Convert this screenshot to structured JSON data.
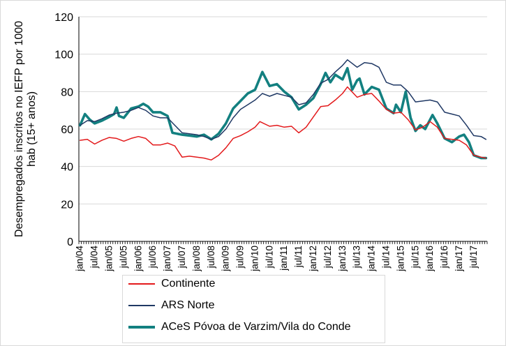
{
  "chart_data": {
    "type": "line",
    "ylabel": "Desempregados inscritos no IEFP por 1000 hab (15+ anos)",
    "ylim": [
      0,
      120
    ],
    "yticks": [
      "0",
      "20",
      "40",
      "60",
      "80",
      "100",
      "120"
    ],
    "xlim": [
      "2004-01",
      "2017-12"
    ],
    "xticks": [
      "jan/04",
      "jul/04",
      "jan/05",
      "jul/05",
      "jan/06",
      "jul/06",
      "jan/07",
      "jul/07",
      "jan/08",
      "jul/08",
      "jan/09",
      "jul/09",
      "jan/10",
      "jul/10",
      "jan/11",
      "jul/11",
      "jan/12",
      "jul/12",
      "jan/13",
      "jul/13",
      "jan/14",
      "jul/14",
      "jan/15",
      "jul/15",
      "jan/16",
      "jul/16",
      "jan/17",
      "jul/17"
    ],
    "grid": "horizontal",
    "legend_position": "bottom",
    "series": [
      {
        "name": "Continente",
        "color": "#e3191b",
        "stroke": "thin",
        "points": [
          [
            "2004-01",
            54
          ],
          [
            "2004-04",
            54.5
          ],
          [
            "2004-07",
            52
          ],
          [
            "2004-10",
            54
          ],
          [
            "2005-01",
            55.5
          ],
          [
            "2005-04",
            55
          ],
          [
            "2005-07",
            53.5
          ],
          [
            "2005-10",
            55
          ],
          [
            "2006-01",
            56
          ],
          [
            "2006-04",
            55
          ],
          [
            "2006-07",
            51.5
          ],
          [
            "2006-10",
            51.5
          ],
          [
            "2007-01",
            52.5
          ],
          [
            "2007-04",
            51
          ],
          [
            "2007-07",
            45
          ],
          [
            "2007-10",
            45.5
          ],
          [
            "2008-01",
            45
          ],
          [
            "2008-04",
            44.5
          ],
          [
            "2008-07",
            43.5
          ],
          [
            "2008-10",
            46
          ],
          [
            "2009-01",
            50
          ],
          [
            "2009-04",
            55
          ],
          [
            "2009-07",
            56.5
          ],
          [
            "2009-10",
            58.5
          ],
          [
            "2010-01",
            61
          ],
          [
            "2010-03",
            64
          ],
          [
            "2010-07",
            61.5
          ],
          [
            "2010-10",
            62
          ],
          [
            "2011-01",
            61
          ],
          [
            "2011-04",
            61.5
          ],
          [
            "2011-07",
            58
          ],
          [
            "2011-10",
            61
          ],
          [
            "2012-01",
            66.5
          ],
          [
            "2012-04",
            72
          ],
          [
            "2012-07",
            72.5
          ],
          [
            "2012-10",
            75.5
          ],
          [
            "2013-01",
            79
          ],
          [
            "2013-03",
            82.5
          ],
          [
            "2013-07",
            77
          ],
          [
            "2013-10",
            78.5
          ],
          [
            "2014-01",
            79
          ],
          [
            "2014-04",
            75
          ],
          [
            "2014-07",
            70.5
          ],
          [
            "2014-10",
            68.5
          ],
          [
            "2015-01",
            69
          ],
          [
            "2015-04",
            65
          ],
          [
            "2015-07",
            59.5
          ],
          [
            "2015-10",
            61
          ],
          [
            "2016-01",
            64
          ],
          [
            "2016-04",
            61
          ],
          [
            "2016-07",
            55
          ],
          [
            "2016-10",
            54.5
          ],
          [
            "2017-01",
            54
          ],
          [
            "2017-04",
            51.5
          ],
          [
            "2017-07",
            46
          ],
          [
            "2017-10",
            45
          ],
          [
            "2017-12",
            44.5
          ]
        ]
      },
      {
        "name": "ARS Norte",
        "color": "#1f3864",
        "stroke": "thin",
        "points": [
          [
            "2004-01",
            62
          ],
          [
            "2004-04",
            64.5
          ],
          [
            "2004-07",
            64
          ],
          [
            "2004-10",
            65.5
          ],
          [
            "2005-01",
            67.5
          ],
          [
            "2005-04",
            68.5
          ],
          [
            "2005-07",
            69
          ],
          [
            "2005-10",
            70
          ],
          [
            "2006-01",
            71.5
          ],
          [
            "2006-04",
            70
          ],
          [
            "2006-07",
            67
          ],
          [
            "2006-10",
            66
          ],
          [
            "2007-01",
            66
          ],
          [
            "2007-04",
            62
          ],
          [
            "2007-07",
            58
          ],
          [
            "2007-10",
            57.5
          ],
          [
            "2008-01",
            57
          ],
          [
            "2008-04",
            56
          ],
          [
            "2008-07",
            54.5
          ],
          [
            "2008-10",
            56
          ],
          [
            "2009-01",
            60
          ],
          [
            "2009-04",
            66
          ],
          [
            "2009-07",
            70.5
          ],
          [
            "2009-10",
            73
          ],
          [
            "2010-01",
            75.5
          ],
          [
            "2010-04",
            79
          ],
          [
            "2010-07",
            77.5
          ],
          [
            "2010-10",
            79
          ],
          [
            "2011-01",
            78
          ],
          [
            "2011-04",
            77
          ],
          [
            "2011-07",
            73
          ],
          [
            "2011-10",
            74
          ],
          [
            "2012-01",
            78.5
          ],
          [
            "2012-04",
            84.5
          ],
          [
            "2012-07",
            86.5
          ],
          [
            "2012-10",
            90.5
          ],
          [
            "2013-01",
            94
          ],
          [
            "2013-03",
            97
          ],
          [
            "2013-07",
            93
          ],
          [
            "2013-10",
            95.5
          ],
          [
            "2014-01",
            95
          ],
          [
            "2014-04",
            93
          ],
          [
            "2014-07",
            85
          ],
          [
            "2014-10",
            83.5
          ],
          [
            "2015-01",
            83.5
          ],
          [
            "2015-04",
            80
          ],
          [
            "2015-07",
            74.5
          ],
          [
            "2015-10",
            75
          ],
          [
            "2016-01",
            75.5
          ],
          [
            "2016-04",
            74.5
          ],
          [
            "2016-07",
            69
          ],
          [
            "2016-10",
            68
          ],
          [
            "2017-01",
            67
          ],
          [
            "2017-04",
            62
          ],
          [
            "2017-07",
            56.5
          ],
          [
            "2017-10",
            56
          ],
          [
            "2017-12",
            54.5
          ]
        ]
      },
      {
        "name": "ACeS Póvoa de Varzim/Vila do Conde",
        "color": "#138080",
        "stroke": "thick",
        "points": [
          [
            "2004-01",
            62
          ],
          [
            "2004-03",
            68
          ],
          [
            "2004-05",
            65
          ],
          [
            "2004-07",
            63
          ],
          [
            "2004-10",
            64.5
          ],
          [
            "2005-01",
            66.5
          ],
          [
            "2005-03",
            68
          ],
          [
            "2005-04",
            71.5
          ],
          [
            "2005-05",
            67
          ],
          [
            "2005-07",
            66
          ],
          [
            "2005-10",
            71
          ],
          [
            "2006-01",
            72
          ],
          [
            "2006-03",
            73.5
          ],
          [
            "2006-05",
            72
          ],
          [
            "2006-07",
            69
          ],
          [
            "2006-10",
            69
          ],
          [
            "2007-01",
            67
          ],
          [
            "2007-03",
            58
          ],
          [
            "2007-07",
            57
          ],
          [
            "2007-10",
            56.5
          ],
          [
            "2008-01",
            56
          ],
          [
            "2008-04",
            57
          ],
          [
            "2008-07",
            54.5
          ],
          [
            "2008-10",
            57.5
          ],
          [
            "2009-01",
            63
          ],
          [
            "2009-04",
            71
          ],
          [
            "2009-07",
            75
          ],
          [
            "2009-10",
            79
          ],
          [
            "2010-01",
            81
          ],
          [
            "2010-04",
            90.5
          ],
          [
            "2010-07",
            83
          ],
          [
            "2010-10",
            84
          ],
          [
            "2011-01",
            80
          ],
          [
            "2011-04",
            77
          ],
          [
            "2011-07",
            70.5
          ],
          [
            "2011-10",
            73
          ],
          [
            "2012-01",
            76.5
          ],
          [
            "2012-04",
            84
          ],
          [
            "2012-06",
            90
          ],
          [
            "2012-08",
            85
          ],
          [
            "2012-10",
            89
          ],
          [
            "2013-01",
            86.5
          ],
          [
            "2013-03",
            92.5
          ],
          [
            "2013-05",
            81
          ],
          [
            "2013-07",
            86
          ],
          [
            "2013-08",
            87
          ],
          [
            "2013-10",
            78.5
          ],
          [
            "2014-01",
            82.5
          ],
          [
            "2014-04",
            81
          ],
          [
            "2014-07",
            71
          ],
          [
            "2014-10",
            68.5
          ],
          [
            "2014-11",
            73
          ],
          [
            "2015-01",
            69
          ],
          [
            "2015-03",
            80
          ],
          [
            "2015-05",
            66
          ],
          [
            "2015-07",
            59
          ],
          [
            "2015-09",
            62
          ],
          [
            "2015-11",
            60
          ],
          [
            "2016-01",
            65
          ],
          [
            "2016-02",
            67.5
          ],
          [
            "2016-04",
            63
          ],
          [
            "2016-07",
            55
          ],
          [
            "2016-10",
            53
          ],
          [
            "2017-01",
            56
          ],
          [
            "2017-03",
            57
          ],
          [
            "2017-05",
            53
          ],
          [
            "2017-07",
            46
          ],
          [
            "2017-10",
            44.5
          ],
          [
            "2017-12",
            44.5
          ]
        ]
      }
    ]
  }
}
